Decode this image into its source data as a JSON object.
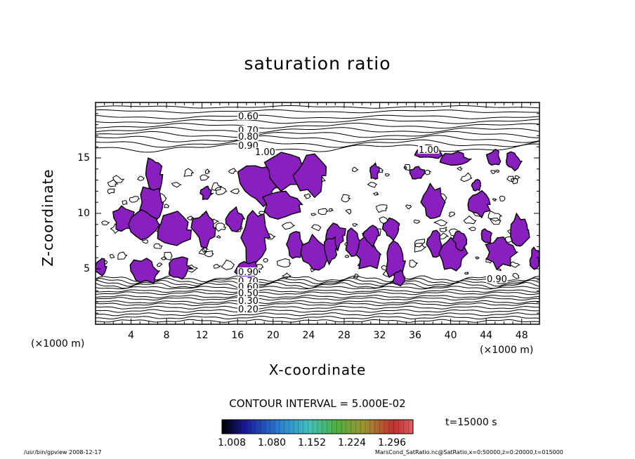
{
  "chart_data": {
    "type": "contour",
    "title": "saturation ratio",
    "xlabel": "X-coordinate",
    "ylabel": "Z-coordinate",
    "x_unit_left": "(×1000 m)",
    "x_unit_right": "(×1000 m)",
    "xlim": [
      0,
      50
    ],
    "ylim": [
      0,
      20
    ],
    "x_ticks": [
      4,
      8,
      12,
      16,
      20,
      24,
      28,
      32,
      36,
      40,
      44,
      48
    ],
    "y_ticks": [
      5,
      10,
      15
    ],
    "contour_interval_text": "CONTOUR INTERVAL = 5.000E-02",
    "upper_contour_labels": [
      "0.60",
      "0.70",
      "0.80",
      "0.90",
      "1.00"
    ],
    "lower_contour_labels": [
      "0.90",
      "0.70",
      "0.60",
      "0.50",
      "0.30",
      "0.20"
    ],
    "extra_contour_labels": [
      "1.00",
      "0.90"
    ],
    "shaded_threshold": 1.0,
    "colorbar_ticks": [
      "1.008",
      "1.080",
      "1.152",
      "1.224",
      "1.296"
    ],
    "colorbar_range": [
      1.008,
      1.296
    ],
    "time_label": "t=15000 s",
    "shade_color": "#8a1fbf"
  },
  "footer": {
    "left": "/usr/bin/gpview   2008-12-17",
    "right": "MarsCond_SatRatio.nc@SatRatio,x=0:50000,z=0:20000,t=015000"
  }
}
